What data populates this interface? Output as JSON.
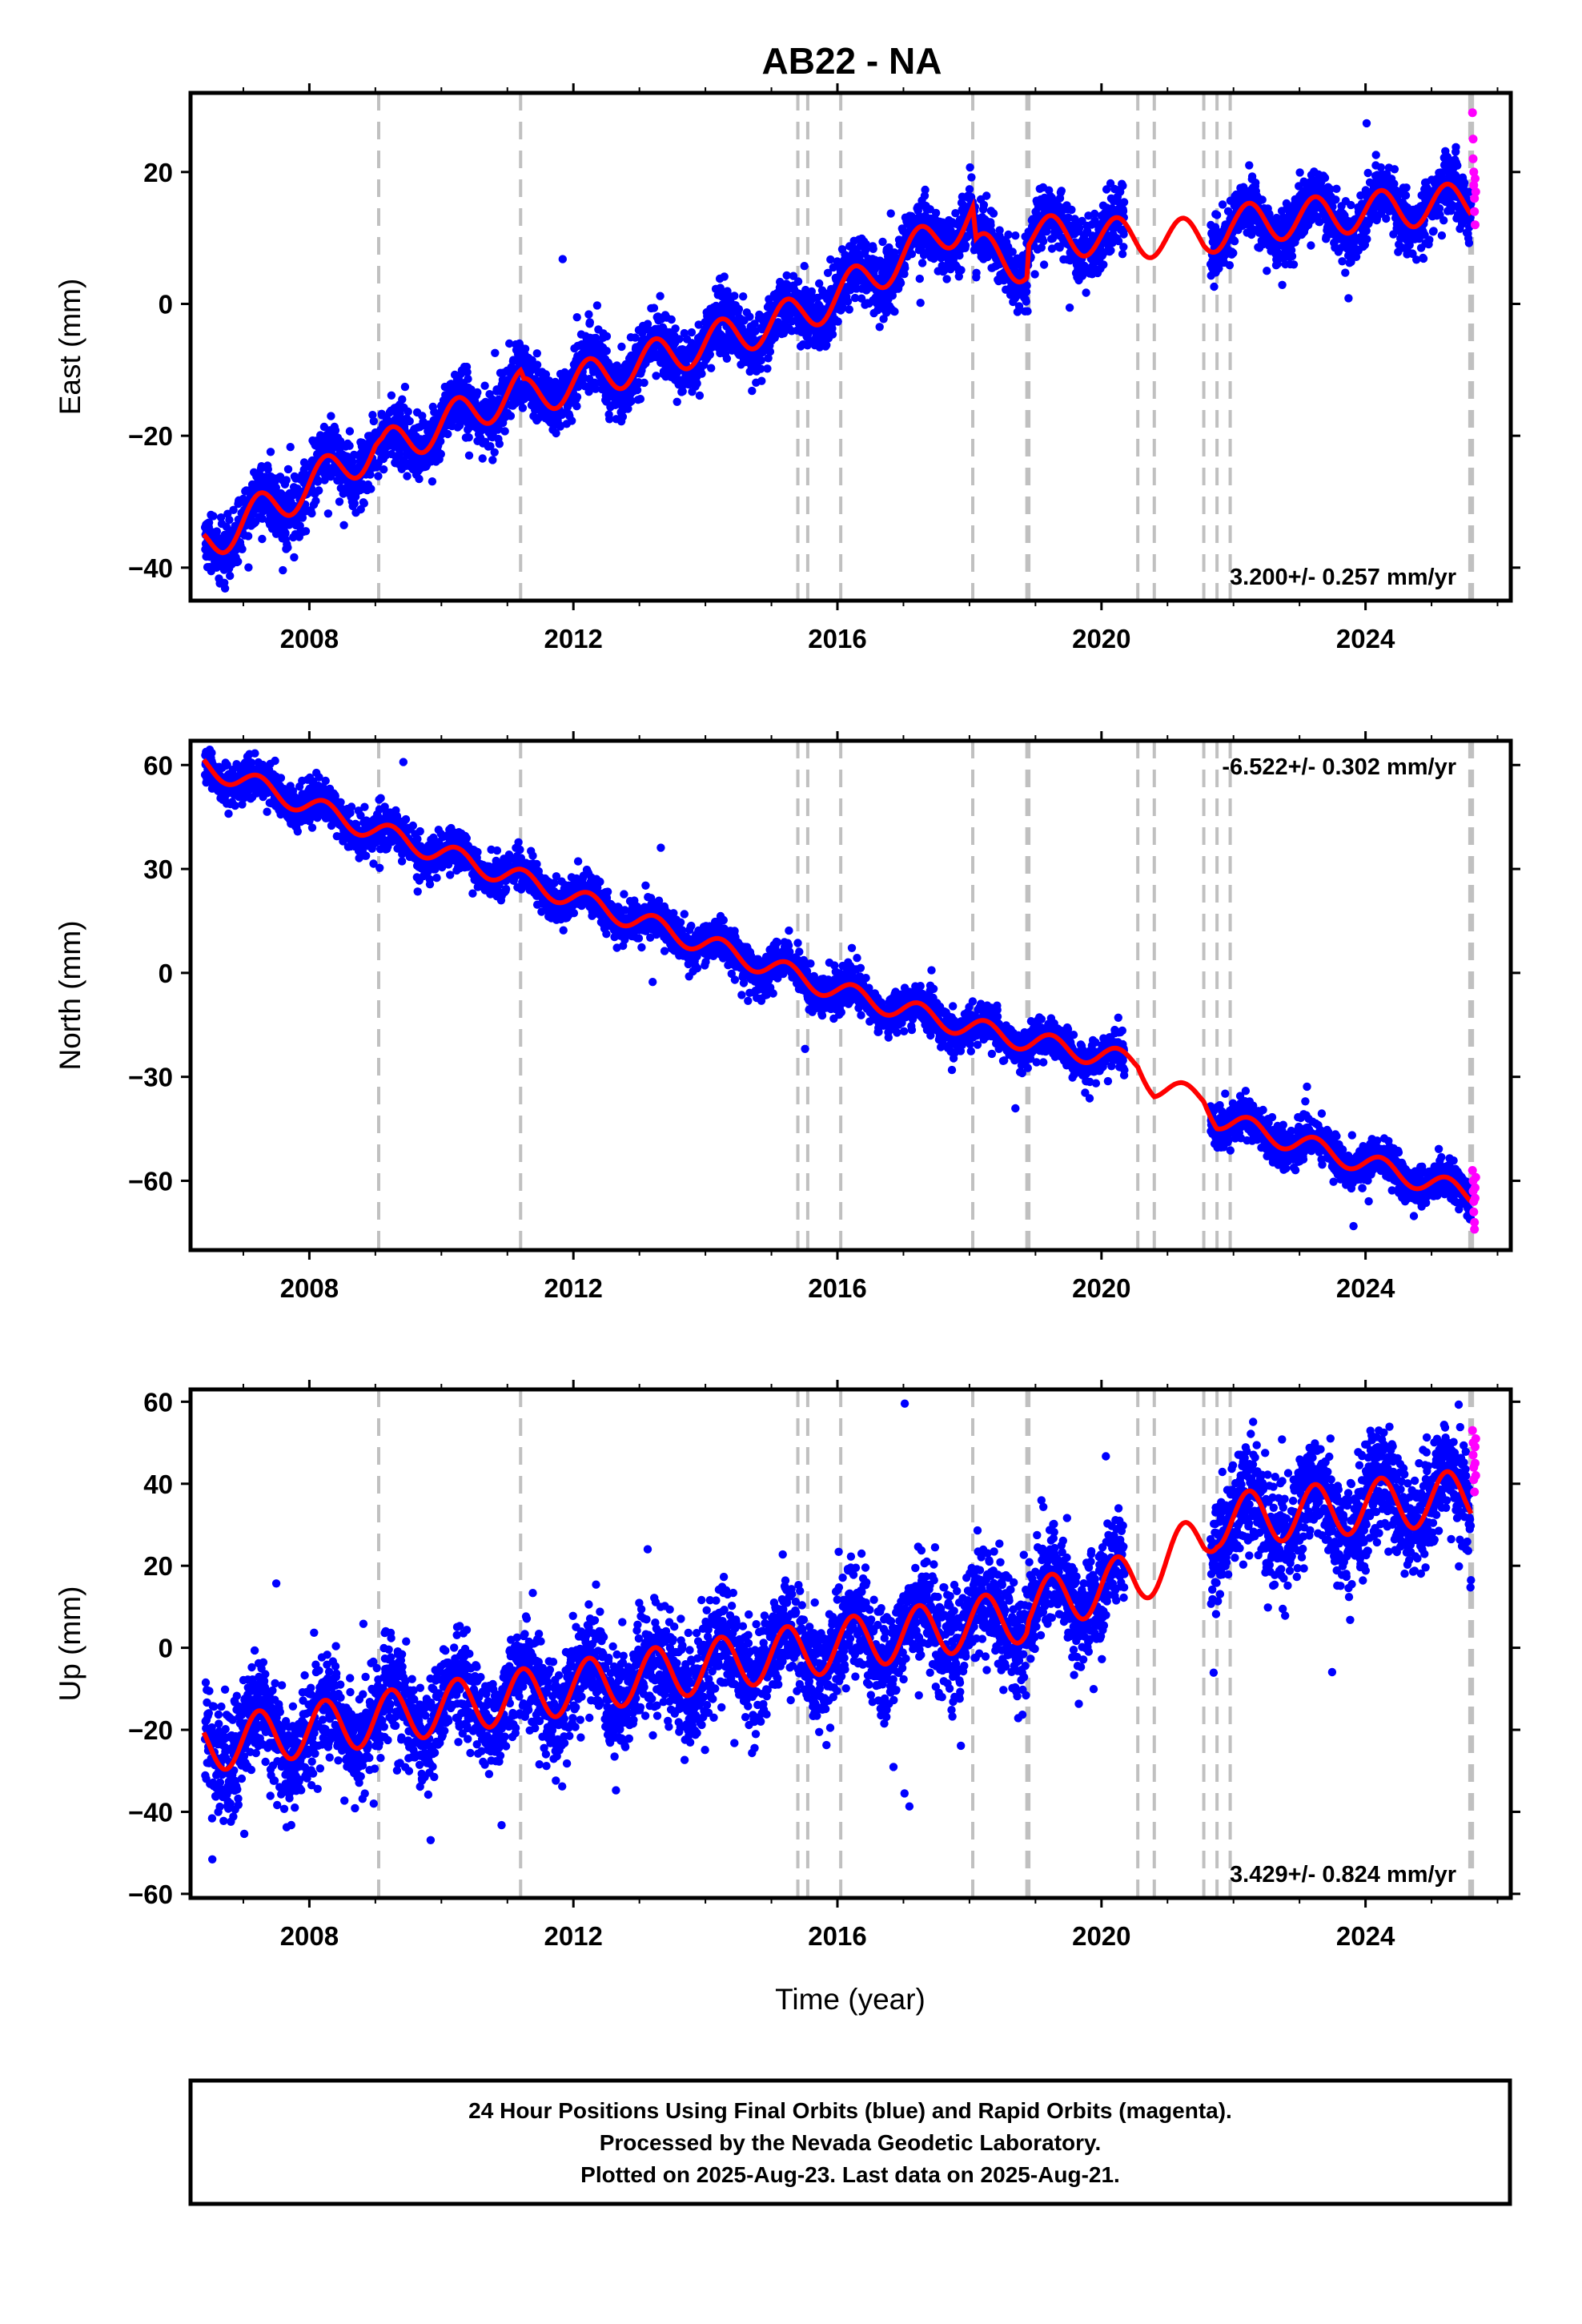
{
  "chart_data": {
    "type": "scatter",
    "title": "AB22 - NA",
    "xlabel": "Time (year)",
    "xlim": [
      2006.2,
      2026.2
    ],
    "x_ticks": [
      2008,
      2012,
      2016,
      2020,
      2024
    ],
    "x_tick_labels": [
      "2008",
      "2012",
      "2016",
      "2020",
      "2024"
    ],
    "last_data_year": 2025.64,
    "discontinuities": [
      2009.05,
      2011.2,
      2015.4,
      2015.55,
      2016.05,
      2018.05,
      2018.87,
      2018.9,
      2020.55,
      2020.8,
      2021.55,
      2021.75,
      2021.95,
      2025.58,
      2025.62
    ],
    "series_colors": {
      "final_orbits": "#0000ff",
      "rapid_orbits": "#ff00ff",
      "model": "#ff0000",
      "discontinuity": "#c0c0c0"
    },
    "panels": [
      {
        "ylabel": "East (mm)",
        "ylim": [
          -45,
          32
        ],
        "y_ticks": [
          -40,
          -20,
          0,
          20
        ],
        "y_tick_labels": [
          "−40",
          "−20",
          "0",
          "20"
        ],
        "rate_text": "3.200+/- 0.257 mm/yr",
        "rate_position": "bottom-right",
        "rate": 3.2,
        "offset_at_start": -36.5,
        "seasonal_amplitude": 3.0,
        "scatter": 2.3,
        "gap": [
          2020.35,
          2021.65
        ],
        "segment_model": [
          [
            2006.4,
            -36.5
          ],
          [
            2009.0,
            -21.8
          ],
          [
            2009.1,
            -22.3
          ],
          [
            2011.2,
            -13.0
          ],
          [
            2011.25,
            -14.3
          ],
          [
            2015.4,
            -1.8
          ],
          [
            2016.05,
            1.5
          ],
          [
            2018.05,
            13.5
          ],
          [
            2018.1,
            8.0
          ],
          [
            2018.87,
            6.0
          ],
          [
            2018.9,
            10.5
          ],
          [
            2020.55,
            10.0
          ],
          [
            2021.55,
            10.0
          ],
          [
            2021.75,
            11.0
          ],
          [
            2021.95,
            12.0
          ],
          [
            2025.58,
            15.5
          ]
        ],
        "rapid_points": [
          [
            2025.62,
            29
          ],
          [
            2025.63,
            25
          ],
          [
            2025.63,
            22
          ],
          [
            2025.64,
            20
          ],
          [
            2025.64,
            18
          ],
          [
            2025.65,
            16
          ],
          [
            2025.65,
            14
          ],
          [
            2025.66,
            12
          ],
          [
            2025.66,
            19
          ],
          [
            2025.67,
            17
          ]
        ]
      },
      {
        "ylabel": "North (mm)",
        "ylim": [
          -80,
          67
        ],
        "y_ticks": [
          -60,
          -30,
          0,
          30,
          60
        ],
        "y_tick_labels": [
          "−60",
          "−30",
          "0",
          "30",
          "60"
        ],
        "rate_text": "-6.522+/- 0.302 mm/yr",
        "rate_position": "top-right",
        "rate": -6.522,
        "offset_at_start": 60.0,
        "seasonal_amplitude": 3.0,
        "scatter": 2.8,
        "gap": [
          2020.35,
          2021.65
        ],
        "segment_model": [
          [
            2006.4,
            60.0
          ],
          [
            2009.0,
            41.0
          ],
          [
            2011.2,
            27.0
          ],
          [
            2015.4,
            -1.0
          ],
          [
            2016.05,
            -5.5
          ],
          [
            2018.05,
            -16.0
          ],
          [
            2018.87,
            -19.5
          ],
          [
            2020.55,
            -26.0
          ],
          [
            2020.8,
            -33.0
          ],
          [
            2021.55,
            -36.0
          ],
          [
            2021.75,
            -42.0
          ],
          [
            2025.58,
            -64.0
          ]
        ],
        "rapid_points": [
          [
            2025.62,
            -57
          ],
          [
            2025.63,
            -60
          ],
          [
            2025.63,
            -63
          ],
          [
            2025.64,
            -66
          ],
          [
            2025.64,
            -69
          ],
          [
            2025.65,
            -72
          ],
          [
            2025.65,
            -74
          ],
          [
            2025.66,
            -62
          ],
          [
            2025.66,
            -65
          ],
          [
            2025.67,
            -59
          ]
        ]
      },
      {
        "ylabel": "Up (mm)",
        "ylim": [
          -61,
          63
        ],
        "y_ticks": [
          -60,
          -40,
          -20,
          0,
          20,
          40,
          60
        ],
        "y_tick_labels": [
          "−60",
          "−40",
          "−20",
          "0",
          "20",
          "40",
          "60"
        ],
        "rate_text": "3.429+/- 0.824 mm/yr",
        "rate_position": "bottom-right",
        "rate": 3.429,
        "offset_at_start": -24.0,
        "seasonal_amplitude": 6.5,
        "scatter": 6.5,
        "gap": [
          2020.35,
          2021.65
        ],
        "segment_model": [
          [
            2006.4,
            -24.0
          ],
          [
            2018.87,
            8.0
          ],
          [
            2018.9,
            10.0
          ],
          [
            2020.55,
            17.0
          ],
          [
            2021.55,
            27.0
          ],
          [
            2021.75,
            31.0
          ],
          [
            2025.58,
            37.0
          ]
        ],
        "rapid_points": [
          [
            2025.62,
            53
          ],
          [
            2025.63,
            50
          ],
          [
            2025.63,
            47
          ],
          [
            2025.64,
            44
          ],
          [
            2025.64,
            41
          ],
          [
            2025.65,
            38
          ],
          [
            2025.66,
            45
          ],
          [
            2025.66,
            49
          ],
          [
            2025.67,
            42
          ],
          [
            2025.67,
            51
          ]
        ]
      }
    ]
  },
  "footer": {
    "line1": "24 Hour Positions Using Final Orbits (blue) and Rapid Orbits (magenta).",
    "line2": "Processed by the Nevada Geodetic Laboratory.",
    "line3": "Plotted on 2025-Aug-23. Last data on 2025-Aug-21."
  }
}
